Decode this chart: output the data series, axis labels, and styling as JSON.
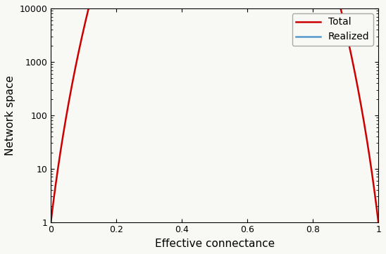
{
  "n": 6,
  "xlabel": "Effective connectance",
  "ylabel": "Network space",
  "xlim": [
    0,
    1
  ],
  "ylim": [
    1,
    10000
  ],
  "total_color": "#cc0000",
  "realized_color": "#5599cc",
  "legend_labels": [
    "Total",
    "Realized"
  ],
  "line_width": 1.8,
  "background_color": "#f8f8f4"
}
